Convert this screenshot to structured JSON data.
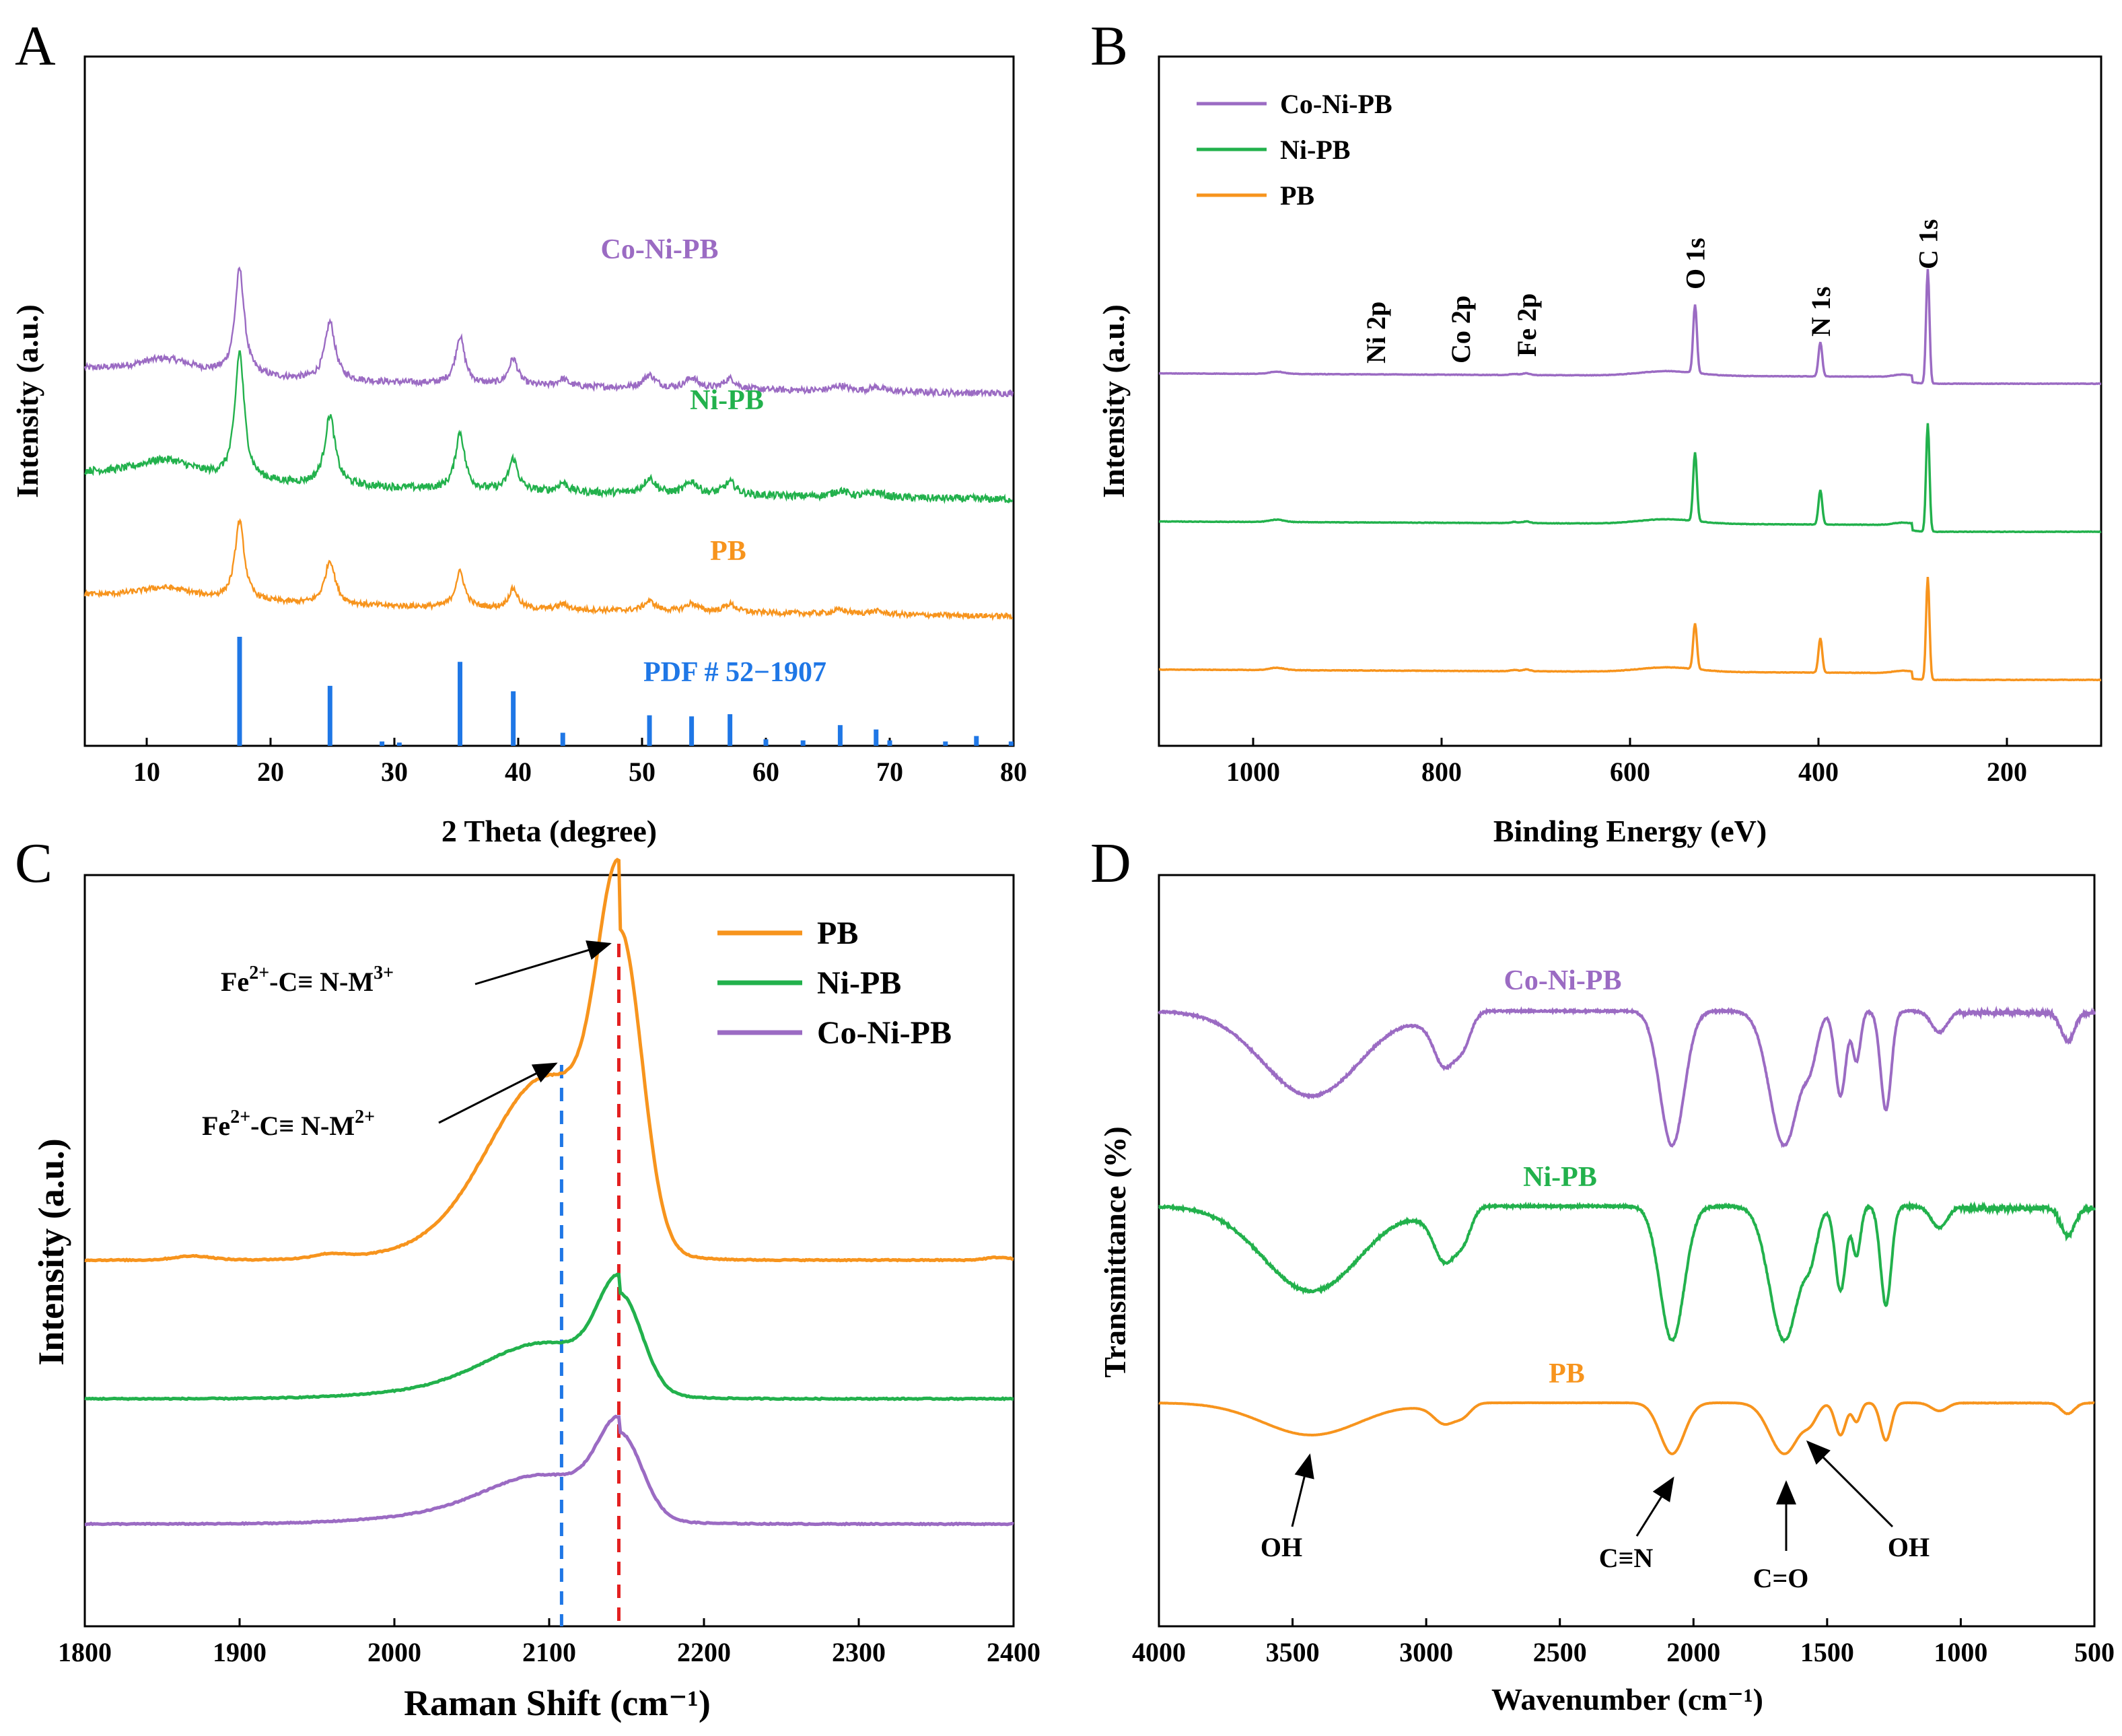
{
  "colors": {
    "co_ni_pb": "#9b6bc3",
    "ni_pb": "#22b14c",
    "pb": "#f7941d",
    "pdf": "#1f77e6",
    "dash_blue": "#1f77e6",
    "dash_red": "#e32020",
    "axis": "#000000"
  },
  "chart_data": [
    {
      "panel": "A",
      "type": "line",
      "xlabel": "2 Theta (degree)",
      "ylabel": "Intensity (a.u.)",
      "xlim": [
        5,
        80
      ],
      "xticks": [
        10,
        20,
        30,
        40,
        50,
        60,
        70,
        80
      ],
      "grid": false,
      "series": [
        {
          "name": "Co-Ni-PB",
          "color_key": "co_ni_pb",
          "offset": 2.1,
          "scale": 1.0,
          "noise": 0.03
        },
        {
          "name": "Ni-PB",
          "color_key": "ni_pb",
          "offset": 1.1,
          "scale": 1.2,
          "noise": 0.035
        },
        {
          "name": "PB",
          "color_key": "pb",
          "offset": 0.0,
          "scale": 0.75,
          "noise": 0.025
        }
      ],
      "peaks": [
        {
          "x": 11.5,
          "h": 0.15,
          "w": 3.0
        },
        {
          "x": 17.5,
          "h": 1.0,
          "w": 0.45
        },
        {
          "x": 24.8,
          "h": 0.55,
          "w": 0.5
        },
        {
          "x": 35.3,
          "h": 0.45,
          "w": 0.45
        },
        {
          "x": 39.6,
          "h": 0.25,
          "w": 0.45
        },
        {
          "x": 43.6,
          "h": 0.07,
          "w": 0.5
        },
        {
          "x": 50.6,
          "h": 0.12,
          "w": 0.6
        },
        {
          "x": 54.0,
          "h": 0.1,
          "w": 0.6
        },
        {
          "x": 57.1,
          "h": 0.1,
          "w": 0.6
        },
        {
          "x": 66.0,
          "h": 0.05,
          "w": 0.7
        },
        {
          "x": 68.9,
          "h": 0.04,
          "w": 0.7
        }
      ],
      "reference": {
        "label": "PDF # 52−1907",
        "sticks": [
          {
            "x": 17.5,
            "h": 1.0
          },
          {
            "x": 24.8,
            "h": 0.55
          },
          {
            "x": 29.0,
            "h": 0.04
          },
          {
            "x": 30.4,
            "h": 0.03
          },
          {
            "x": 35.3,
            "h": 0.77
          },
          {
            "x": 39.6,
            "h": 0.5
          },
          {
            "x": 43.6,
            "h": 0.12
          },
          {
            "x": 50.6,
            "h": 0.28
          },
          {
            "x": 54.0,
            "h": 0.27
          },
          {
            "x": 57.1,
            "h": 0.29
          },
          {
            "x": 60.0,
            "h": 0.06
          },
          {
            "x": 63.0,
            "h": 0.05
          },
          {
            "x": 66.0,
            "h": 0.19
          },
          {
            "x": 68.9,
            "h": 0.15
          },
          {
            "x": 70.0,
            "h": 0.05
          },
          {
            "x": 74.5,
            "h": 0.04
          },
          {
            "x": 77.0,
            "h": 0.09
          },
          {
            "x": 79.8,
            "h": 0.04
          }
        ]
      }
    },
    {
      "panel": "B",
      "type": "line",
      "xlabel": "Binding Energy (eV)",
      "ylabel": "Intensity (a.u.)",
      "xlim": [
        1100,
        100
      ],
      "xticks": [
        1000,
        800,
        600,
        400,
        200
      ],
      "grid": false,
      "legend": [
        "Co-Ni-PB",
        "Ni-PB",
        "PB"
      ],
      "legend_position": "top-left",
      "peak_labels": [
        {
          "text": "Ni 2p",
          "x": 870
        },
        {
          "text": "Co 2p",
          "x": 780
        },
        {
          "text": "Fe 2p",
          "x": 710
        },
        {
          "text": "O 1s",
          "x": 531
        },
        {
          "text": "N 1s",
          "x": 398
        },
        {
          "text": "C 1s",
          "x": 284
        }
      ],
      "series": [
        {
          "name": "Co-Ni-PB",
          "color_key": "co_ni_pb",
          "offset": 2.2,
          "o1s": 0.6,
          "n1s": 0.3,
          "c1s": 1.0
        },
        {
          "name": "Ni-PB",
          "color_key": "ni_pb",
          "offset": 1.1,
          "o1s": 0.6,
          "n1s": 0.3,
          "c1s": 0.95
        },
        {
          "name": "PB",
          "color_key": "pb",
          "offset": 0.0,
          "o1s": 0.4,
          "n1s": 0.3,
          "c1s": 0.9
        }
      ]
    },
    {
      "panel": "C",
      "type": "line",
      "xlabel": "Raman Shift (cm⁻¹)",
      "ylabel": "Intensity (a.u.)",
      "xlim": [
        1800,
        2400
      ],
      "xticks": [
        1800,
        1900,
        2000,
        2100,
        2200,
        2300,
        2400
      ],
      "grid": false,
      "legend": [
        "PB",
        "Ni-PB",
        "Co-Ni-PB"
      ],
      "legend_position": "top-right",
      "dashed_lines": [
        {
          "x": 2108,
          "color_key": "dash_blue"
        },
        {
          "x": 2145,
          "color_key": "dash_red"
        }
      ],
      "annotations": [
        {
          "base": "Fe",
          "sup1": "2+",
          "mid": "-C≡ N-M",
          "sup2": "3+",
          "target_x": 2145,
          "target": "peak"
        },
        {
          "base": "Fe",
          "sup1": "2+",
          "mid": "-C≡ N-M",
          "sup2": "2+",
          "target_x": 2108,
          "target": "shoulder"
        }
      ],
      "series": [
        {
          "name": "PB",
          "color_key": "pb",
          "offset": 2.1,
          "main": 2.3,
          "shoulder": 1.3
        },
        {
          "name": "Ni-PB",
          "color_key": "ni_pb",
          "offset": 1.0,
          "main": 0.72,
          "shoulder": 0.35
        },
        {
          "name": "Co-Ni-PB",
          "color_key": "co_ni_pb",
          "offset": 0.0,
          "main": 0.62,
          "shoulder": 0.3
        }
      ]
    },
    {
      "panel": "D",
      "type": "line",
      "xlabel": "Wavenumber (cm⁻¹)",
      "ylabel": "Transmittance (%)",
      "xlim": [
        4000,
        500
      ],
      "xticks": [
        4000,
        3500,
        3000,
        2500,
        2000,
        1500,
        1000,
        500
      ],
      "grid": false,
      "series": [
        {
          "name": "Co-Ni-PB",
          "color_key": "co_ni_pb",
          "offset": 2.45,
          "scale": 1.0,
          "noise": 0.012
        },
        {
          "name": "Ni-PB",
          "color_key": "ni_pb",
          "offset": 1.45,
          "scale": 1.0,
          "noise": 0.014
        },
        {
          "name": "PB",
          "color_key": "pb",
          "offset": 0.7,
          "scale": 0.38,
          "noise": 0.004
        }
      ],
      "bands": [
        {
          "x": 3430,
          "depth": 0.6,
          "w": 180
        },
        {
          "x": 2930,
          "depth": 0.35,
          "w": 40
        },
        {
          "x": 2860,
          "depth": 0.2,
          "w": 30
        },
        {
          "x": 2080,
          "depth": 0.95,
          "w": 45
        },
        {
          "x": 1660,
          "depth": 0.95,
          "w": 55
        },
        {
          "x": 1560,
          "depth": 0.25,
          "w": 25
        },
        {
          "x": 1450,
          "depth": 0.6,
          "w": 20
        },
        {
          "x": 1390,
          "depth": 0.35,
          "w": 15
        },
        {
          "x": 1280,
          "depth": 0.7,
          "w": 20
        },
        {
          "x": 1080,
          "depth": 0.15,
          "w": 30
        },
        {
          "x": 600,
          "depth": 0.2,
          "w": 25
        }
      ],
      "band_labels": [
        {
          "text": "OH",
          "x": 3430
        },
        {
          "text": "C≡N",
          "x": 2080
        },
        {
          "text": "C=O",
          "x": 1660
        },
        {
          "text": "OH",
          "x": 1600
        }
      ]
    }
  ]
}
